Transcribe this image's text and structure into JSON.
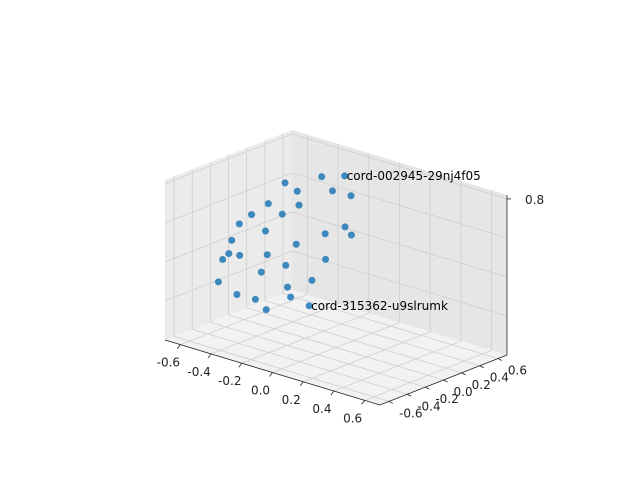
{
  "chart_data": {
    "type": "scatter",
    "projection": "3d",
    "title": "",
    "xlabel": "",
    "ylabel": "",
    "zlabel": "",
    "xlim": [
      -0.7,
      0.7
    ],
    "ylim": [
      -0.7,
      0.7
    ],
    "zlim": [
      0.0,
      0.82
    ],
    "xticks": [
      "-0.6",
      "-0.4",
      "-0.2",
      "0.0",
      "0.2",
      "0.4",
      "0.6"
    ],
    "yticks": [
      "-0.6",
      "-0.4",
      "-0.2",
      "0.0",
      "0.2",
      "0.4",
      "0.6"
    ],
    "zticks": [
      "0.8"
    ],
    "grid": true,
    "marker_color": "#1f77b4",
    "points": [
      {
        "x": -0.15,
        "y": 0.35,
        "z": 0.78,
        "label": "cord-002945-29nj4f05"
      },
      {
        "x": 0.15,
        "y": -0.55,
        "z": 0.35,
        "label": "cord-315362-u9slrumk"
      },
      {
        "x": -0.45,
        "y": 0.2,
        "z": 0.7,
        "label": ""
      },
      {
        "x": -0.4,
        "y": 0.25,
        "z": 0.66,
        "label": ""
      },
      {
        "x": -0.5,
        "y": 0.1,
        "z": 0.6,
        "label": ""
      },
      {
        "x": -0.55,
        "y": 0.0,
        "z": 0.55,
        "label": ""
      },
      {
        "x": -0.6,
        "y": -0.05,
        "z": 0.5,
        "label": ""
      },
      {
        "x": -0.35,
        "y": 0.0,
        "z": 0.6,
        "label": ""
      },
      {
        "x": -0.3,
        "y": 0.1,
        "z": 0.64,
        "label": ""
      },
      {
        "x": -0.62,
        "y": -0.1,
        "z": 0.42,
        "label": ""
      },
      {
        "x": -0.58,
        "y": -0.2,
        "z": 0.38,
        "label": ""
      },
      {
        "x": -0.62,
        "y": -0.2,
        "z": 0.34,
        "label": ""
      },
      {
        "x": -0.45,
        "y": -0.3,
        "z": 0.42,
        "label": ""
      },
      {
        "x": -0.3,
        "y": -0.25,
        "z": 0.45,
        "label": ""
      },
      {
        "x": -0.2,
        "y": -0.1,
        "z": 0.5,
        "label": ""
      },
      {
        "x": -0.1,
        "y": 0.05,
        "z": 0.55,
        "label": ""
      },
      {
        "x": 0.0,
        "y": 0.1,
        "z": 0.6,
        "label": ""
      },
      {
        "x": -0.5,
        "y": -0.45,
        "z": 0.3,
        "label": ""
      },
      {
        "x": -0.35,
        "y": -0.5,
        "z": 0.28,
        "label": ""
      },
      {
        "x": -0.2,
        "y": -0.55,
        "z": 0.3,
        "label": ""
      },
      {
        "x": -0.1,
        "y": -0.6,
        "z": 0.28,
        "label": ""
      },
      {
        "x": 0.0,
        "y": -0.5,
        "z": 0.35,
        "label": ""
      },
      {
        "x": -0.25,
        "y": -0.4,
        "z": 0.4,
        "label": ""
      },
      {
        "x": -0.15,
        "y": -0.3,
        "z": 0.44,
        "label": ""
      },
      {
        "x": 0.05,
        "y": -0.2,
        "z": 0.5,
        "label": ""
      },
      {
        "x": 0.1,
        "y": 0.0,
        "z": 0.6,
        "label": ""
      },
      {
        "x": -0.2,
        "y": 0.3,
        "z": 0.7,
        "label": ""
      },
      {
        "x": -0.3,
        "y": 0.35,
        "z": 0.74,
        "label": ""
      },
      {
        "x": -0.05,
        "y": 0.25,
        "z": 0.72,
        "label": ""
      },
      {
        "x": 0.05,
        "y": -0.35,
        "z": 0.42,
        "label": ""
      },
      {
        "x": -0.4,
        "y": -0.1,
        "z": 0.52,
        "label": ""
      },
      {
        "x": -0.05,
        "y": -0.45,
        "z": 0.38,
        "label": ""
      }
    ]
  }
}
